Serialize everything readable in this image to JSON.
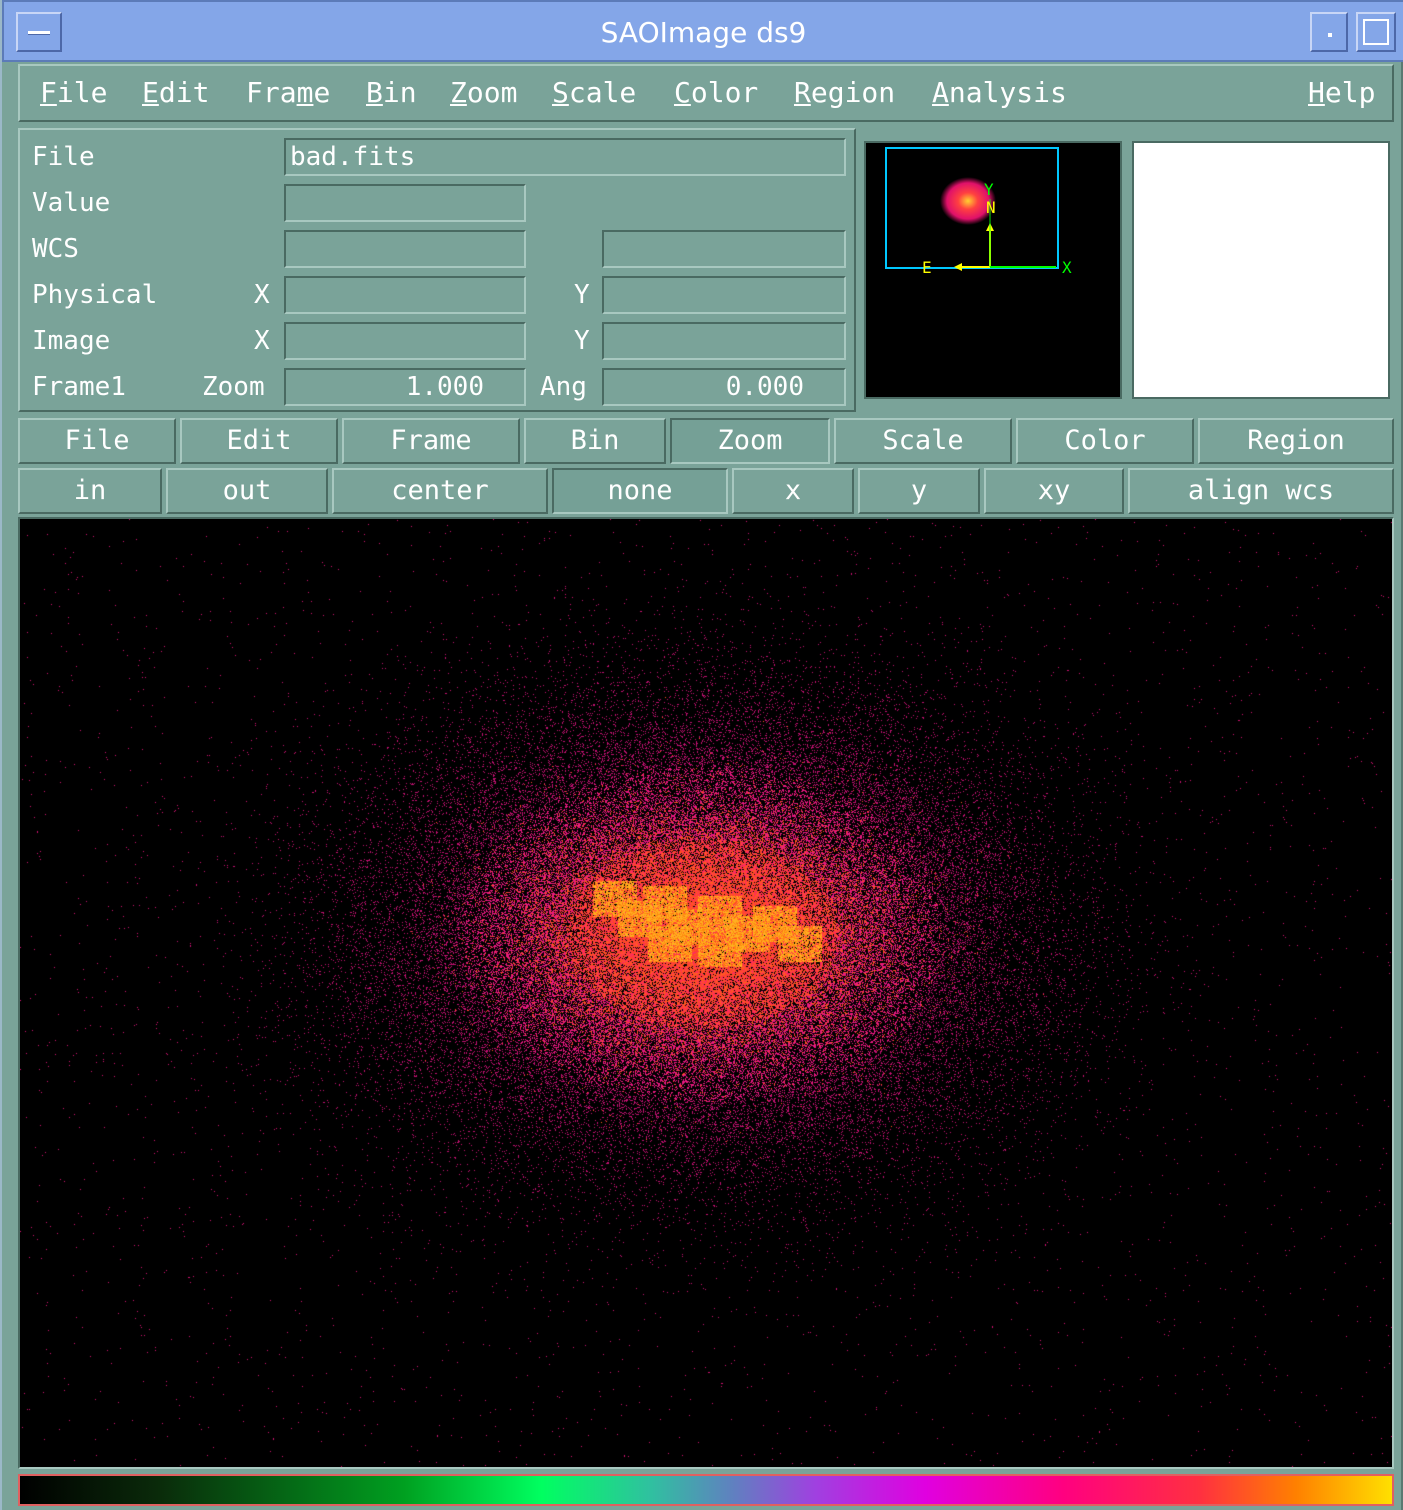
{
  "window": {
    "title": "SAOImage ds9"
  },
  "menubar": {
    "items": [
      {
        "pre": "",
        "u": "F",
        "post": "ile"
      },
      {
        "pre": "",
        "u": "E",
        "post": "dit"
      },
      {
        "pre": "Fra",
        "u": "m",
        "post": "e"
      },
      {
        "pre": "",
        "u": "B",
        "post": "in"
      },
      {
        "pre": "",
        "u": "Z",
        "post": "oom"
      },
      {
        "pre": "",
        "u": "S",
        "post": "cale"
      },
      {
        "pre": "",
        "u": "C",
        "post": "olor"
      },
      {
        "pre": "",
        "u": "R",
        "post": "egion"
      },
      {
        "pre": "",
        "u": "A",
        "post": "nalysis"
      },
      {
        "pre": "",
        "u": "H",
        "post": "elp"
      }
    ]
  },
  "info": {
    "file_label": "File",
    "file_value": "bad.fits",
    "value_label": "Value",
    "value_value": "",
    "wcs_label": "WCS",
    "wcs_value1": "",
    "wcs_value2": "",
    "physical_label": "Physical",
    "physical_x_label": "X",
    "physical_x": "",
    "physical_y_label": "Y",
    "physical_y": "",
    "image_label": "Image",
    "image_x_label": "X",
    "image_x": "",
    "image_y_label": "Y",
    "image_y": "",
    "frame_label": "Frame1",
    "zoom_label": "Zoom",
    "zoom_value": "1.000",
    "ang_label": "Ang",
    "ang_value": "0.000"
  },
  "panner": {
    "compass": {
      "n": "N",
      "e": "E",
      "x": "X",
      "y": "Y"
    }
  },
  "buttonbar1": [
    "File",
    "Edit",
    "Frame",
    "Bin",
    "Zoom",
    "Scale",
    "Color",
    "Region"
  ],
  "buttonbar1_active": "Zoom",
  "buttonbar2": [
    "in",
    "out",
    "center",
    "none",
    "x",
    "y",
    "xy",
    "align wcs"
  ],
  "buttonbar2_active": "none",
  "colors": {
    "background": "#7aa399",
    "titlebar": "#84a6e8",
    "panner_box": "#00c8ff",
    "compass_green": "#00ff00",
    "compass_yellow": "#ffff00",
    "colorbar_border": "#e06060"
  },
  "colormap": "sls"
}
